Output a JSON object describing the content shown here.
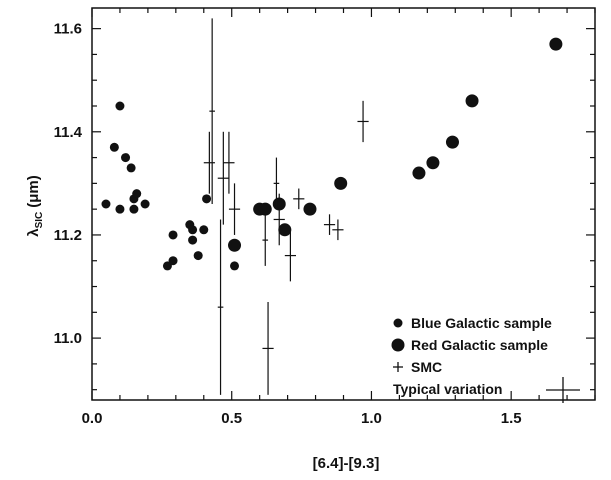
{
  "chart_data": {
    "type": "scatter",
    "xlabel": "[6.4]-[9.3]",
    "ylabel": "λSIC (μm)",
    "ylabel_main": "λ",
    "ylabel_sub": "SIC",
    "ylabel_unit": "(μm)",
    "xlim": [
      0.0,
      1.8
    ],
    "ylim": [
      10.88,
      11.64
    ],
    "x_ticks": [
      0.0,
      0.5,
      1.0,
      1.5
    ],
    "x_tick_labels": [
      "0.0",
      "0.5",
      "1.0",
      "1.5"
    ],
    "y_ticks": [
      11.0,
      11.2,
      11.4,
      11.6
    ],
    "y_tick_labels": [
      "11.0",
      "11.2",
      "11.4",
      "11.6"
    ],
    "grid": false,
    "legend_position": "bottom-right",
    "series": [
      {
        "name": "Blue Galactic sample",
        "marker": "small-filled-circle",
        "points": [
          {
            "x": 0.05,
            "y": 11.26
          },
          {
            "x": 0.08,
            "y": 11.37
          },
          {
            "x": 0.1,
            "y": 11.45
          },
          {
            "x": 0.1,
            "y": 11.25
          },
          {
            "x": 0.12,
            "y": 11.35
          },
          {
            "x": 0.14,
            "y": 11.33
          },
          {
            "x": 0.15,
            "y": 11.25
          },
          {
            "x": 0.15,
            "y": 11.27
          },
          {
            "x": 0.16,
            "y": 11.28
          },
          {
            "x": 0.19,
            "y": 11.26
          },
          {
            "x": 0.27,
            "y": 11.14
          },
          {
            "x": 0.29,
            "y": 11.15
          },
          {
            "x": 0.29,
            "y": 11.2
          },
          {
            "x": 0.35,
            "y": 11.22
          },
          {
            "x": 0.36,
            "y": 11.19
          },
          {
            "x": 0.36,
            "y": 11.21
          },
          {
            "x": 0.38,
            "y": 11.16
          },
          {
            "x": 0.4,
            "y": 11.21
          },
          {
            "x": 0.41,
            "y": 11.27
          },
          {
            "x": 0.51,
            "y": 11.14
          }
        ]
      },
      {
        "name": "Red Galactic sample",
        "marker": "large-filled-circle",
        "points": [
          {
            "x": 0.51,
            "y": 11.18
          },
          {
            "x": 0.6,
            "y": 11.25
          },
          {
            "x": 0.62,
            "y": 11.25
          },
          {
            "x": 0.67,
            "y": 11.26
          },
          {
            "x": 0.69,
            "y": 11.21
          },
          {
            "x": 0.78,
            "y": 11.25
          },
          {
            "x": 0.89,
            "y": 11.3
          },
          {
            "x": 1.17,
            "y": 11.32
          },
          {
            "x": 1.22,
            "y": 11.34
          },
          {
            "x": 1.29,
            "y": 11.38
          },
          {
            "x": 1.36,
            "y": 11.46
          },
          {
            "x": 1.66,
            "y": 11.57
          }
        ]
      },
      {
        "name": "SMC",
        "marker": "plus-with-errorbars",
        "points": [
          {
            "x": 0.42,
            "y": 11.34,
            "xerr": 0.02,
            "yerr": 0.06
          },
          {
            "x": 0.43,
            "y": 11.44,
            "xerr": 0.01,
            "yerr": 0.18
          },
          {
            "x": 0.46,
            "y": 11.06,
            "xerr": 0.01,
            "yerr": 0.17
          },
          {
            "x": 0.47,
            "y": 11.31,
            "xerr": 0.02,
            "yerr": 0.09
          },
          {
            "x": 0.49,
            "y": 11.34,
            "xerr": 0.02,
            "yerr": 0.06
          },
          {
            "x": 0.51,
            "y": 11.25,
            "xerr": 0.02,
            "yerr": 0.05
          },
          {
            "x": 0.62,
            "y": 11.19,
            "xerr": 0.01,
            "yerr": 0.05
          },
          {
            "x": 0.63,
            "y": 10.98,
            "xerr": 0.02,
            "yerr": 0.09
          },
          {
            "x": 0.66,
            "y": 11.3,
            "xerr": 0.01,
            "yerr": 0.05
          },
          {
            "x": 0.67,
            "y": 11.23,
            "xerr": 0.02,
            "yerr": 0.05
          },
          {
            "x": 0.71,
            "y": 11.16,
            "xerr": 0.02,
            "yerr": 0.05
          },
          {
            "x": 0.74,
            "y": 11.27,
            "xerr": 0.02,
            "yerr": 0.02
          },
          {
            "x": 0.85,
            "y": 11.22,
            "xerr": 0.02,
            "yerr": 0.02
          },
          {
            "x": 0.88,
            "y": 11.21,
            "xerr": 0.02,
            "yerr": 0.02
          },
          {
            "x": 0.97,
            "y": 11.42,
            "xerr": 0.02,
            "yerr": 0.04
          }
        ]
      }
    ],
    "legend": [
      {
        "label": "Blue Galactic sample",
        "marker": "small-filled-circle"
      },
      {
        "label": "Red Galactic sample",
        "marker": "large-filled-circle"
      },
      {
        "label": "SMC",
        "marker": "plus"
      },
      {
        "label": "Typical variation",
        "marker": "errorbar-cross"
      }
    ],
    "colors": {
      "ink": "#111111",
      "background": "#ffffff"
    }
  }
}
